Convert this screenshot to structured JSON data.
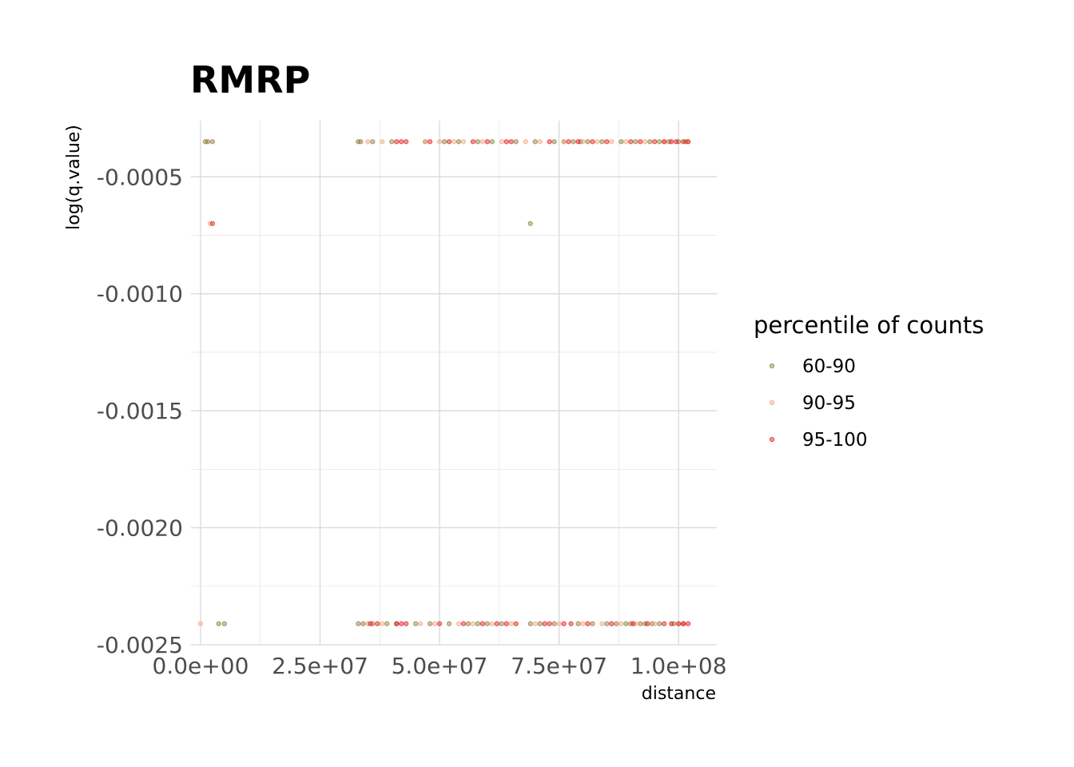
{
  "chart_data": {
    "type": "scatter",
    "title": "RMRP",
    "xlabel": "distance",
    "ylabel": "log(q.value)",
    "xlim": [
      -2000000,
      108000000
    ],
    "ylim": [
      -0.0025,
      -0.00026
    ],
    "x_ticks": [
      0,
      25000000,
      50000000,
      75000000,
      100000000
    ],
    "x_tick_labels": [
      "0.0e+00",
      "2.5e+07",
      "5.0e+07",
      "7.5e+07",
      "1.0e+08"
    ],
    "y_ticks": [
      -0.0005,
      -0.001,
      -0.0015,
      -0.002,
      -0.0025
    ],
    "y_tick_labels": [
      "-0.0005",
      "-0.0010",
      "-0.0015",
      "-0.0020",
      "-0.0025"
    ],
    "grid": true,
    "legend": {
      "title": "percentile of counts",
      "placement": "right"
    },
    "series": [
      {
        "name": "60-90",
        "color": "#8b7d3a",
        "points": [
          [
            1000000,
            -0.00035
          ],
          [
            1500000,
            -0.00035
          ],
          [
            2500000,
            -0.00035
          ],
          [
            3800000,
            -0.00241
          ],
          [
            5000000,
            -0.00241
          ],
          [
            69000000,
            -0.0007
          ],
          [
            33000000,
            -0.00035
          ],
          [
            33500000,
            -0.00035
          ],
          [
            36000000,
            -0.00035
          ],
          [
            40000000,
            -0.00035
          ],
          [
            47000000,
            -0.00035
          ],
          [
            51000000,
            -0.00035
          ],
          [
            54000000,
            -0.00035
          ],
          [
            58000000,
            -0.00035
          ],
          [
            61000000,
            -0.00035
          ],
          [
            66000000,
            -0.00035
          ],
          [
            70000000,
            -0.00035
          ],
          [
            74000000,
            -0.00035
          ],
          [
            76000000,
            -0.00035
          ],
          [
            78000000,
            -0.00035
          ],
          [
            79500000,
            -0.00035
          ],
          [
            81000000,
            -0.00035
          ],
          [
            84000000,
            -0.00035
          ],
          [
            88000000,
            -0.00035
          ],
          [
            91000000,
            -0.00035
          ],
          [
            94000000,
            -0.00035
          ],
          [
            96000000,
            -0.00035
          ],
          [
            98000000,
            -0.00035
          ],
          [
            100000000,
            -0.00035
          ],
          [
            101500000,
            -0.00035
          ],
          [
            33000000,
            -0.00241
          ],
          [
            34000000,
            -0.00241
          ],
          [
            36000000,
            -0.00241
          ],
          [
            39000000,
            -0.00241
          ],
          [
            41000000,
            -0.00241
          ],
          [
            45000000,
            -0.00241
          ],
          [
            48000000,
            -0.00241
          ],
          [
            52000000,
            -0.00241
          ],
          [
            56000000,
            -0.00241
          ],
          [
            58000000,
            -0.00241
          ],
          [
            60000000,
            -0.00241
          ],
          [
            63000000,
            -0.00241
          ],
          [
            69000000,
            -0.00241
          ],
          [
            71000000,
            -0.00241
          ],
          [
            74000000,
            -0.00241
          ],
          [
            79000000,
            -0.00241
          ],
          [
            82000000,
            -0.00241
          ],
          [
            85000000,
            -0.00241
          ],
          [
            87000000,
            -0.00241
          ],
          [
            89000000,
            -0.00241
          ],
          [
            90000000,
            -0.00241
          ],
          [
            92000000,
            -0.00241
          ],
          [
            93000000,
            -0.00241
          ],
          [
            94500000,
            -0.00241
          ],
          [
            96000000,
            -0.00241
          ],
          [
            99000000,
            -0.00241
          ],
          [
            101000000,
            -0.00241
          ]
        ]
      },
      {
        "name": "90-95",
        "color": "#f4a582",
        "points": [
          [
            0,
            -0.00241
          ],
          [
            2000000,
            -0.0007
          ],
          [
            35000000,
            -0.00035
          ],
          [
            38000000,
            -0.00035
          ],
          [
            47000000,
            -0.00035
          ],
          [
            50000000,
            -0.00035
          ],
          [
            53000000,
            -0.00035
          ],
          [
            55000000,
            -0.00035
          ],
          [
            59000000,
            -0.00035
          ],
          [
            63000000,
            -0.00035
          ],
          [
            68000000,
            -0.00035
          ],
          [
            71000000,
            -0.00035
          ],
          [
            76000000,
            -0.00035
          ],
          [
            80000000,
            -0.00035
          ],
          [
            83000000,
            -0.00035
          ],
          [
            86000000,
            -0.00035
          ],
          [
            89000000,
            -0.00035
          ],
          [
            93000000,
            -0.00035
          ],
          [
            97000000,
            -0.00035
          ],
          [
            102000000,
            -0.00035
          ],
          [
            35000000,
            -0.00241
          ],
          [
            38000000,
            -0.00241
          ],
          [
            46000000,
            -0.00241
          ],
          [
            49000000,
            -0.00241
          ],
          [
            54000000,
            -0.00241
          ],
          [
            57000000,
            -0.00241
          ],
          [
            61000000,
            -0.00241
          ],
          [
            65000000,
            -0.00241
          ],
          [
            70000000,
            -0.00241
          ],
          [
            75000000,
            -0.00241
          ],
          [
            80000000,
            -0.00241
          ],
          [
            84000000,
            -0.00241
          ],
          [
            88000000,
            -0.00241
          ],
          [
            91000000,
            -0.00241
          ],
          [
            95000000,
            -0.00241
          ],
          [
            100000000,
            -0.00241
          ]
        ]
      },
      {
        "name": "95-100",
        "color": "#e31a1c",
        "points": [
          [
            2500000,
            -0.0007
          ],
          [
            41000000,
            -0.00035
          ],
          [
            42000000,
            -0.00035
          ],
          [
            43000000,
            -0.00035
          ],
          [
            48000000,
            -0.00035
          ],
          [
            52000000,
            -0.00035
          ],
          [
            57000000,
            -0.00035
          ],
          [
            60000000,
            -0.00035
          ],
          [
            64000000,
            -0.00035
          ],
          [
            65000000,
            -0.00035
          ],
          [
            73000000,
            -0.00035
          ],
          [
            77000000,
            -0.00035
          ],
          [
            79000000,
            -0.00035
          ],
          [
            82000000,
            -0.00035
          ],
          [
            85000000,
            -0.00035
          ],
          [
            90000000,
            -0.00035
          ],
          [
            92000000,
            -0.00035
          ],
          [
            95000000,
            -0.00035
          ],
          [
            97000000,
            -0.00035
          ],
          [
            98500000,
            -0.00035
          ],
          [
            99500000,
            -0.00035
          ],
          [
            101000000,
            -0.00035
          ],
          [
            102000000,
            -0.00035
          ],
          [
            35500000,
            -0.00241
          ],
          [
            37000000,
            -0.00241
          ],
          [
            41000000,
            -0.00241
          ],
          [
            42000000,
            -0.00241
          ],
          [
            43000000,
            -0.00241
          ],
          [
            50000000,
            -0.00241
          ],
          [
            55000000,
            -0.00241
          ],
          [
            59000000,
            -0.00241
          ],
          [
            62000000,
            -0.00241
          ],
          [
            64000000,
            -0.00241
          ],
          [
            66000000,
            -0.00241
          ],
          [
            72000000,
            -0.00241
          ],
          [
            73000000,
            -0.00241
          ],
          [
            76000000,
            -0.00241
          ],
          [
            77500000,
            -0.00241
          ],
          [
            81000000,
            -0.00241
          ],
          [
            86000000,
            -0.00241
          ],
          [
            90500000,
            -0.00241
          ],
          [
            93500000,
            -0.00241
          ],
          [
            97000000,
            -0.00241
          ],
          [
            98500000,
            -0.00241
          ],
          [
            100000000,
            -0.00241
          ],
          [
            101000000,
            -0.00241
          ],
          [
            102000000,
            -0.00241
          ]
        ]
      }
    ]
  }
}
